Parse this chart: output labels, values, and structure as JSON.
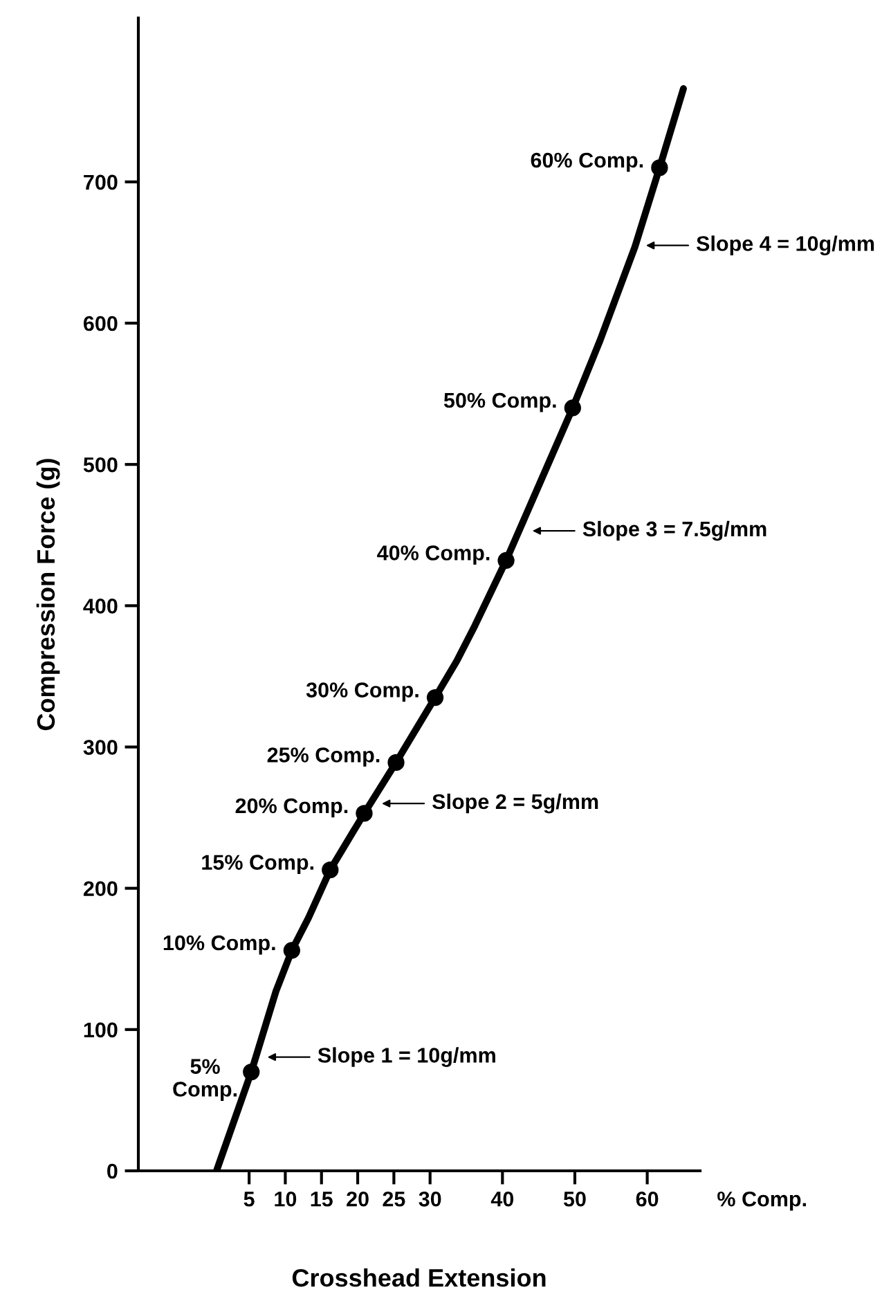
{
  "chart_data": {
    "type": "line",
    "xlabel": "Crosshead Extension",
    "ylabel": "Compression Force (g)",
    "xlim": [
      -10.3,
      67.3
    ],
    "ylim": [
      0,
      816
    ],
    "xticks": [
      5,
      10,
      15,
      20,
      25,
      30,
      40,
      50,
      60
    ],
    "yticks": [
      0,
      100,
      200,
      300,
      400,
      500,
      600,
      700
    ],
    "grid": false,
    "legend": false,
    "series": [
      {
        "color": "#000000",
        "line_style": "solid",
        "x": [
          0.5,
          5.3,
          8.7,
          10.9,
          13.2,
          16.2,
          20.9,
          25.3,
          30.7,
          33.7,
          36.2,
          40.5,
          49.7,
          53.5,
          58.3,
          61.7,
          65
        ],
        "values": [
          0,
          70,
          127,
          156,
          179,
          213,
          253,
          289,
          335,
          361,
          386,
          432,
          540,
          588,
          654,
          710,
          766
        ]
      },
      {
        "type": "scatter",
        "color": "#000000",
        "marker": "circle",
        "x": [
          5.3,
          10.9,
          16.2,
          20.9,
          25.3,
          30.7,
          40.5,
          49.7,
          61.7
        ],
        "values": [
          70,
          156,
          213,
          253,
          289,
          335,
          432,
          540,
          710
        ]
      }
    ],
    "annotations": [
      {
        "text": "5%\nComp.",
        "x": 5.3,
        "y": 70
      },
      {
        "text": "10% Comp.",
        "x": 10.9,
        "y": 156
      },
      {
        "text": "15% Comp.",
        "x": 16.2,
        "y": 213
      },
      {
        "text": "20% Comp.",
        "x": 20.9,
        "y": 253
      },
      {
        "text": "25% Comp.",
        "x": 25.3,
        "y": 289
      },
      {
        "text": "30% Comp.",
        "x": 30.7,
        "y": 335
      },
      {
        "text": "40% Comp.",
        "x": 40.5,
        "y": 432
      },
      {
        "text": "50% Comp.",
        "x": 49.7,
        "y": 540
      },
      {
        "text": "60% Comp.",
        "x": 61.7,
        "y": 710
      },
      {
        "text": "Slope 1 = 10g/mm",
        "x": 7.0,
        "y": 80.5
      },
      {
        "text": "Slope 2 = 5g/mm",
        "x": 22.8,
        "y": 260
      },
      {
        "text": "Slope 3 = 7.5g/mm",
        "x": 43.6,
        "y": 453
      },
      {
        "text": "Slope 4 = 10g/mm",
        "x": 59.3,
        "y": 655
      },
      "% Comp."
    ]
  }
}
